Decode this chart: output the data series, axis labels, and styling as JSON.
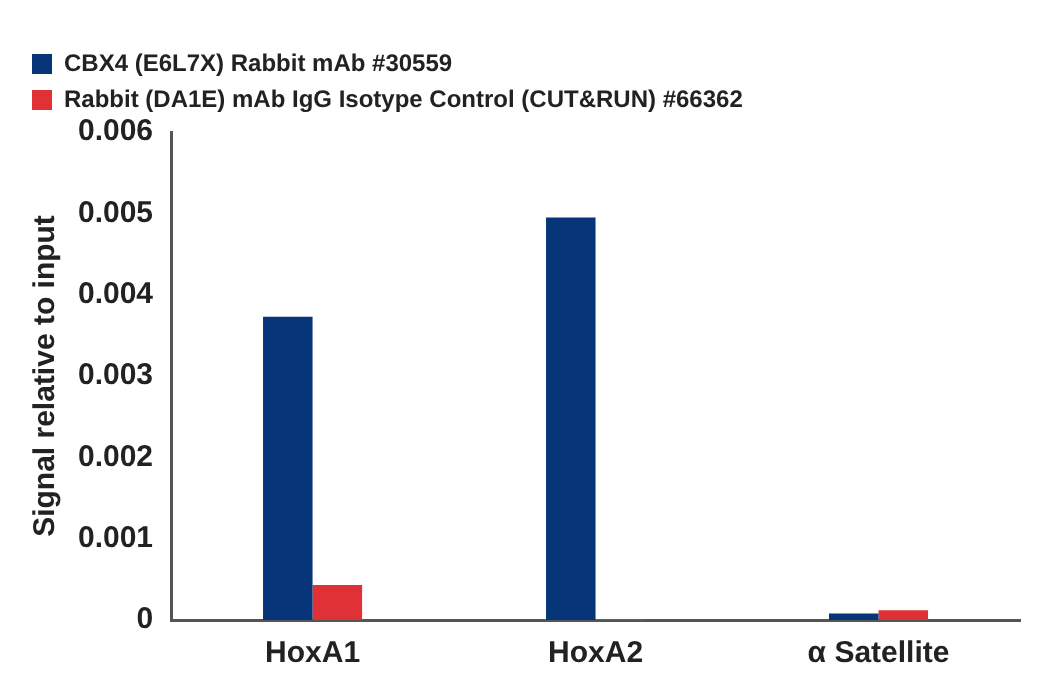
{
  "chart_data": {
    "type": "bar",
    "ylabel": "Signal relative to input",
    "categories": [
      "HoxA1",
      "HoxA2",
      "α Satellite"
    ],
    "series": [
      {
        "name": "CBX4 (E6L7X) Rabbit mAb #30559",
        "color": "#06357a",
        "values": [
          0.00373,
          0.00495,
          8e-05
        ]
      },
      {
        "name": "Rabbit (DA1E) mAb IgG Isotype Control (CUT&RUN) #66362",
        "color": "#e03236",
        "values": [
          0.00043,
          1e-05,
          0.00012
        ]
      }
    ],
    "ylim": [
      0,
      0.006
    ],
    "yticks": [
      0,
      0.001,
      0.002,
      0.003,
      0.004,
      0.005,
      0.006
    ],
    "grid": false,
    "legend": "top left"
  }
}
